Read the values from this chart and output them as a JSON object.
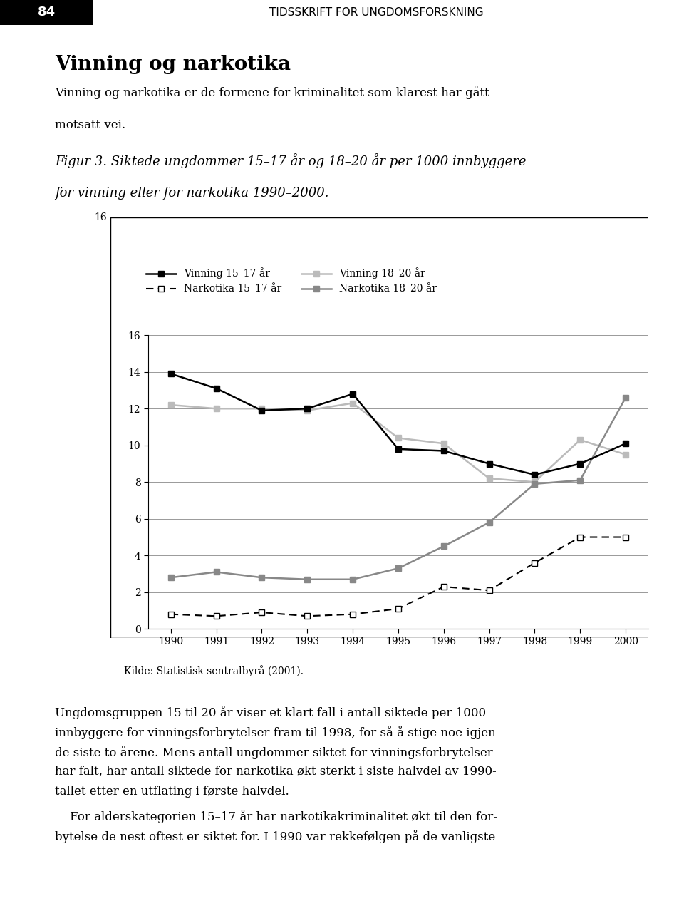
{
  "years": [
    1990,
    1991,
    1992,
    1993,
    1994,
    1995,
    1996,
    1997,
    1998,
    1999,
    2000
  ],
  "vinning_15_17": [
    13.9,
    13.1,
    11.9,
    12.0,
    12.8,
    9.8,
    9.7,
    9.0,
    8.4,
    9.0,
    10.1
  ],
  "vinning_18_20": [
    12.2,
    12.0,
    12.0,
    11.9,
    12.3,
    10.4,
    10.1,
    8.2,
    8.0,
    10.3,
    9.5
  ],
  "narkotika_15_17": [
    0.8,
    0.7,
    0.9,
    0.7,
    0.8,
    1.1,
    2.3,
    2.1,
    3.6,
    5.0,
    5.0
  ],
  "narkotika_18_20": [
    2.8,
    3.1,
    2.8,
    2.7,
    2.7,
    3.3,
    4.5,
    5.8,
    7.9,
    8.1,
    12.6
  ],
  "ylim": [
    0,
    16
  ],
  "yticks": [
    0,
    2,
    4,
    6,
    8,
    10,
    12,
    14,
    16
  ],
  "legend_labels": [
    "Vinning 15–17 år",
    "Vinning 18–20 år",
    "Narkotika 15–17 år",
    "Narkotika 18–20 år"
  ],
  "source_text": "Kilde: Statistisk sentralbyrå (2001).",
  "page_header": "84",
  "journal_header": "TIDSSKRIFT FOR UNGDOMSFORSKNING",
  "figure_caption_line1": "Figur 3. Siktede ungdommer 15–17 år og 18–20 år per 1000 innbyggere",
  "figure_caption_line2": "for vinning eller for narkotika 1990–2000.",
  "vinning_title": "Vinning og narkotika",
  "vinning_intro_line1": "Vinning og narkotika er de formene for kriminalitet som klarest har gått",
  "vinning_intro_line2": "motsatt vei.",
  "body_para1_line1": "Ungdomsgruppen 15 til 20 år viser et klart fall i antall siktede per 1000",
  "body_para1_line2": "innbyggere for vinningsforbrytelser fram til 1998, for så å stige noe igjen",
  "body_para1_line3": "de siste to årene. Mens antall ungdommer siktet for vinningsforbrytelser",
  "body_para1_line4": "har falt, har antall siktede for narkotika økt sterkt i siste halvdel av 1990-",
  "body_para1_line5": "tallet etter en utflating i første halvdel.",
  "body_para2_indent": "    For alderskategorien 15–17 år har narkotikakriminalitet økt til den for-",
  "body_para2_line2": "bytelse de nest oftest er siktet for. I 1990 var rekkefølgen på de vanligste"
}
